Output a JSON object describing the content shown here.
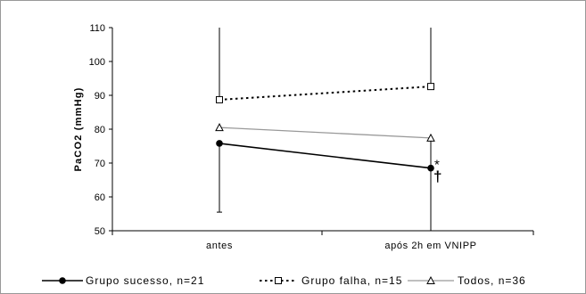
{
  "chart_data": {
    "type": "line",
    "categories": [
      "antes",
      "após 2h em VNIPP"
    ],
    "ylabel": "PaCO2 (mmHg)",
    "ylim": [
      50,
      110
    ],
    "yticks": [
      50,
      60,
      70,
      80,
      90,
      100,
      110
    ],
    "ytick_labels": [
      "50",
      "60",
      "70",
      "80",
      "90",
      "100",
      "110"
    ],
    "grid": false,
    "legend_position": "bottom",
    "series": [
      {
        "name": "Grupo sucesso, n=21",
        "values": [
          75.8,
          68.5
        ],
        "marker": "filled-circle",
        "line": "solid",
        "color": "#000000",
        "error_bars": [
          {
            "low": 55.5,
            "high": null
          },
          {
            "low": null,
            "high": null
          }
        ]
      },
      {
        "name": "Grupo falha, n=15",
        "values": [
          88.7,
          92.6
        ],
        "marker": "open-square",
        "line": "dotted",
        "color": "#000000",
        "error_bars": [
          {
            "low": null,
            "high": 110
          },
          {
            "low": null,
            "high": 110
          }
        ]
      },
      {
        "name": "Todos, n=36",
        "values": [
          80.5,
          77.4
        ],
        "marker": "open-triangle",
        "line": "solid",
        "color": "#999999",
        "error_bars": [
          {
            "low": null,
            "high": null
          },
          {
            "low": 50,
            "high": null
          }
        ]
      }
    ],
    "annotations": [
      {
        "text": "*",
        "category_index": 1,
        "series_index": 0
      },
      {
        "text": "†",
        "category_index": 1,
        "series_index": 0
      }
    ]
  }
}
